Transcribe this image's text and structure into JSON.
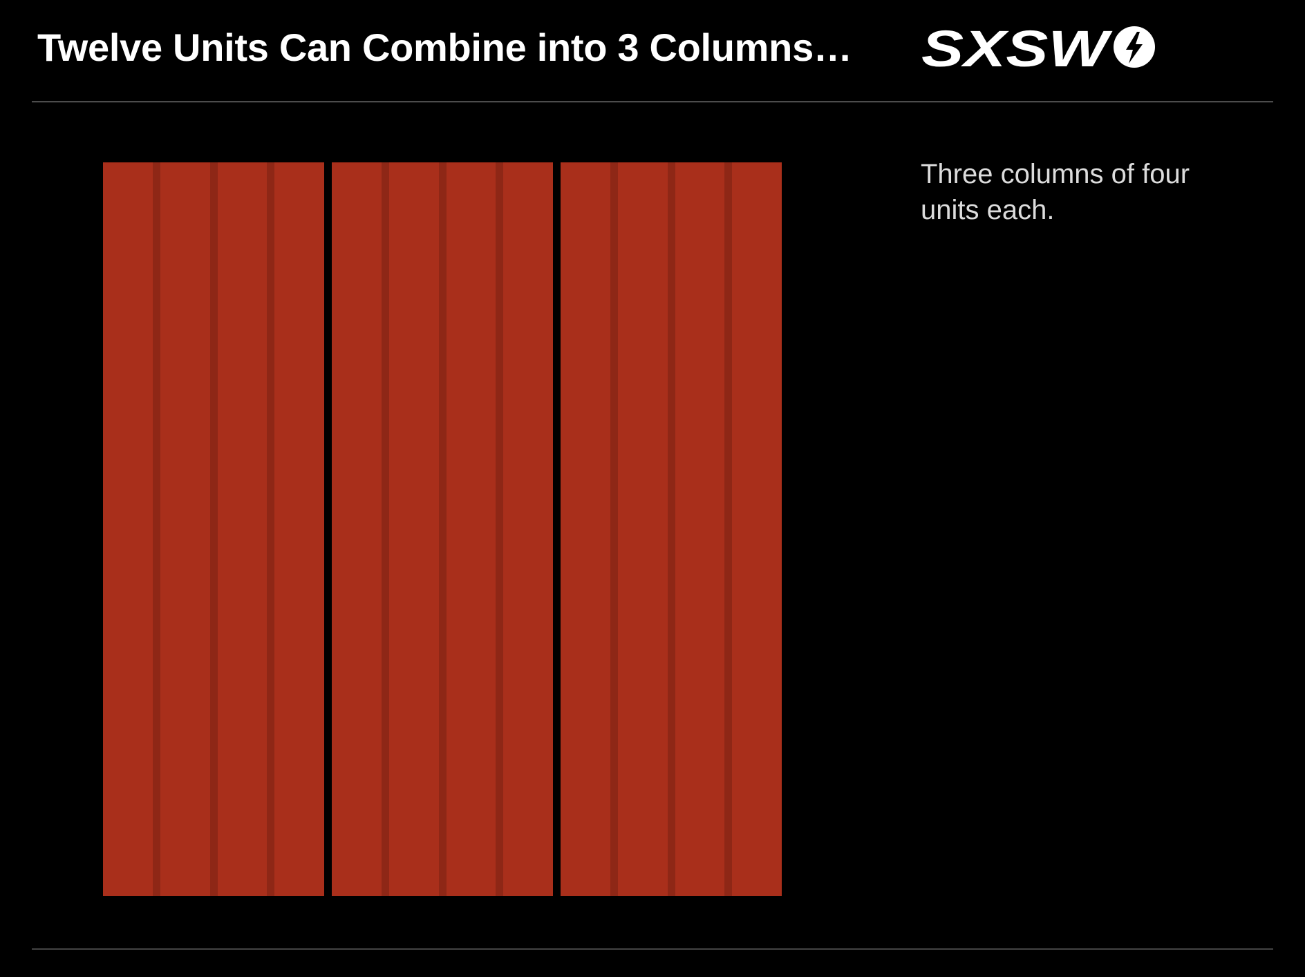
{
  "header": {
    "title": "Twelve Units Can Combine into 3 Columns…",
    "logo_text": "SXSW"
  },
  "side_text": "Three columns of four units each.",
  "diagram": {
    "columns": 3,
    "units_per_column": 4,
    "unit_color": "#a92f1b",
    "divider_color": "#8e2716"
  }
}
